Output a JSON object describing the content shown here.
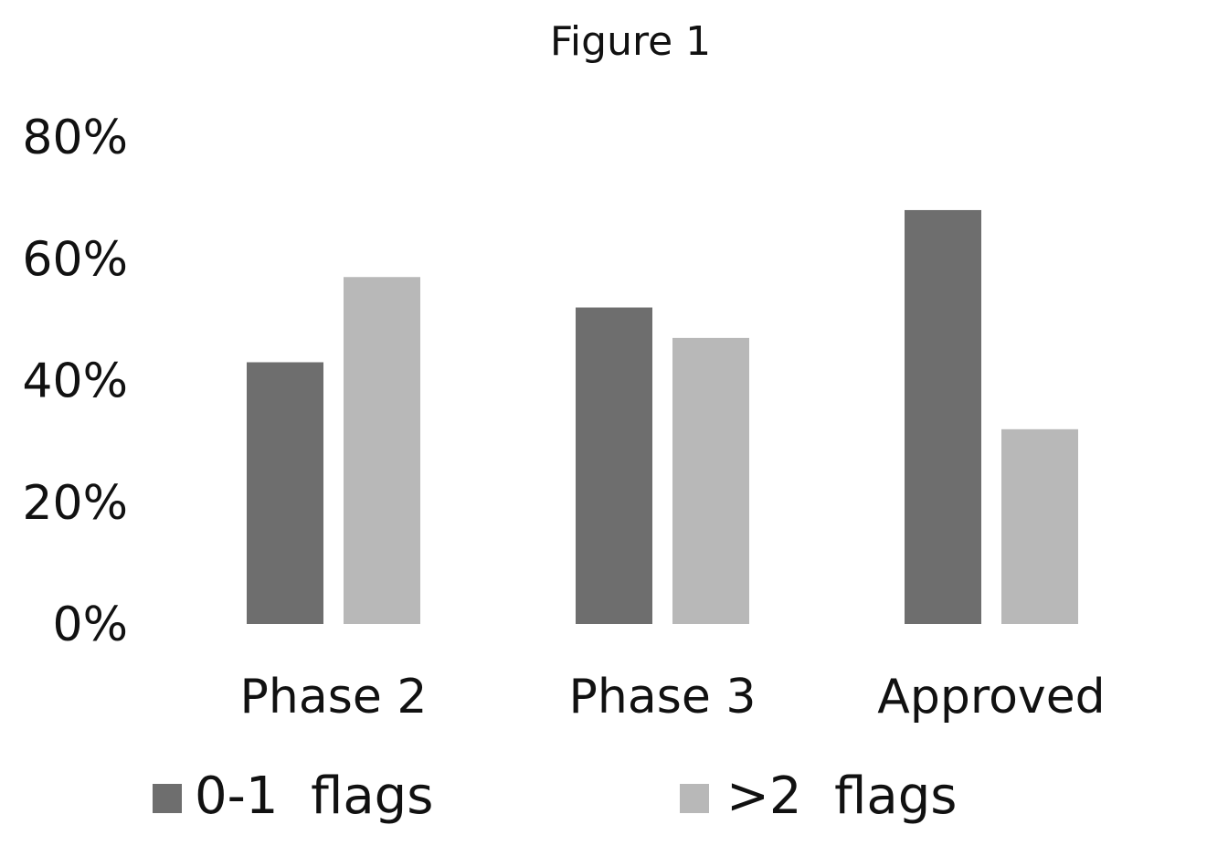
{
  "chart_data": {
    "type": "bar",
    "title": "Figure 1",
    "xlabel": "",
    "ylabel": "",
    "categories": [
      "Phase 2",
      "Phase 3",
      "Approved"
    ],
    "series": [
      {
        "name": "0-1  flags",
        "values": [
          43,
          52,
          68
        ],
        "color": "#6e6e6e"
      },
      {
        "name": ">2  flags",
        "values": [
          57,
          47,
          32
        ],
        "color": "#b8b8b8"
      }
    ],
    "ylim": [
      0,
      80
    ],
    "yticks": [
      0,
      20,
      40,
      60,
      80
    ],
    "ytick_labels": [
      "0%",
      "20%",
      "40%",
      "60%",
      "80%"
    ],
    "grid": false,
    "legend_position": "bottom"
  }
}
